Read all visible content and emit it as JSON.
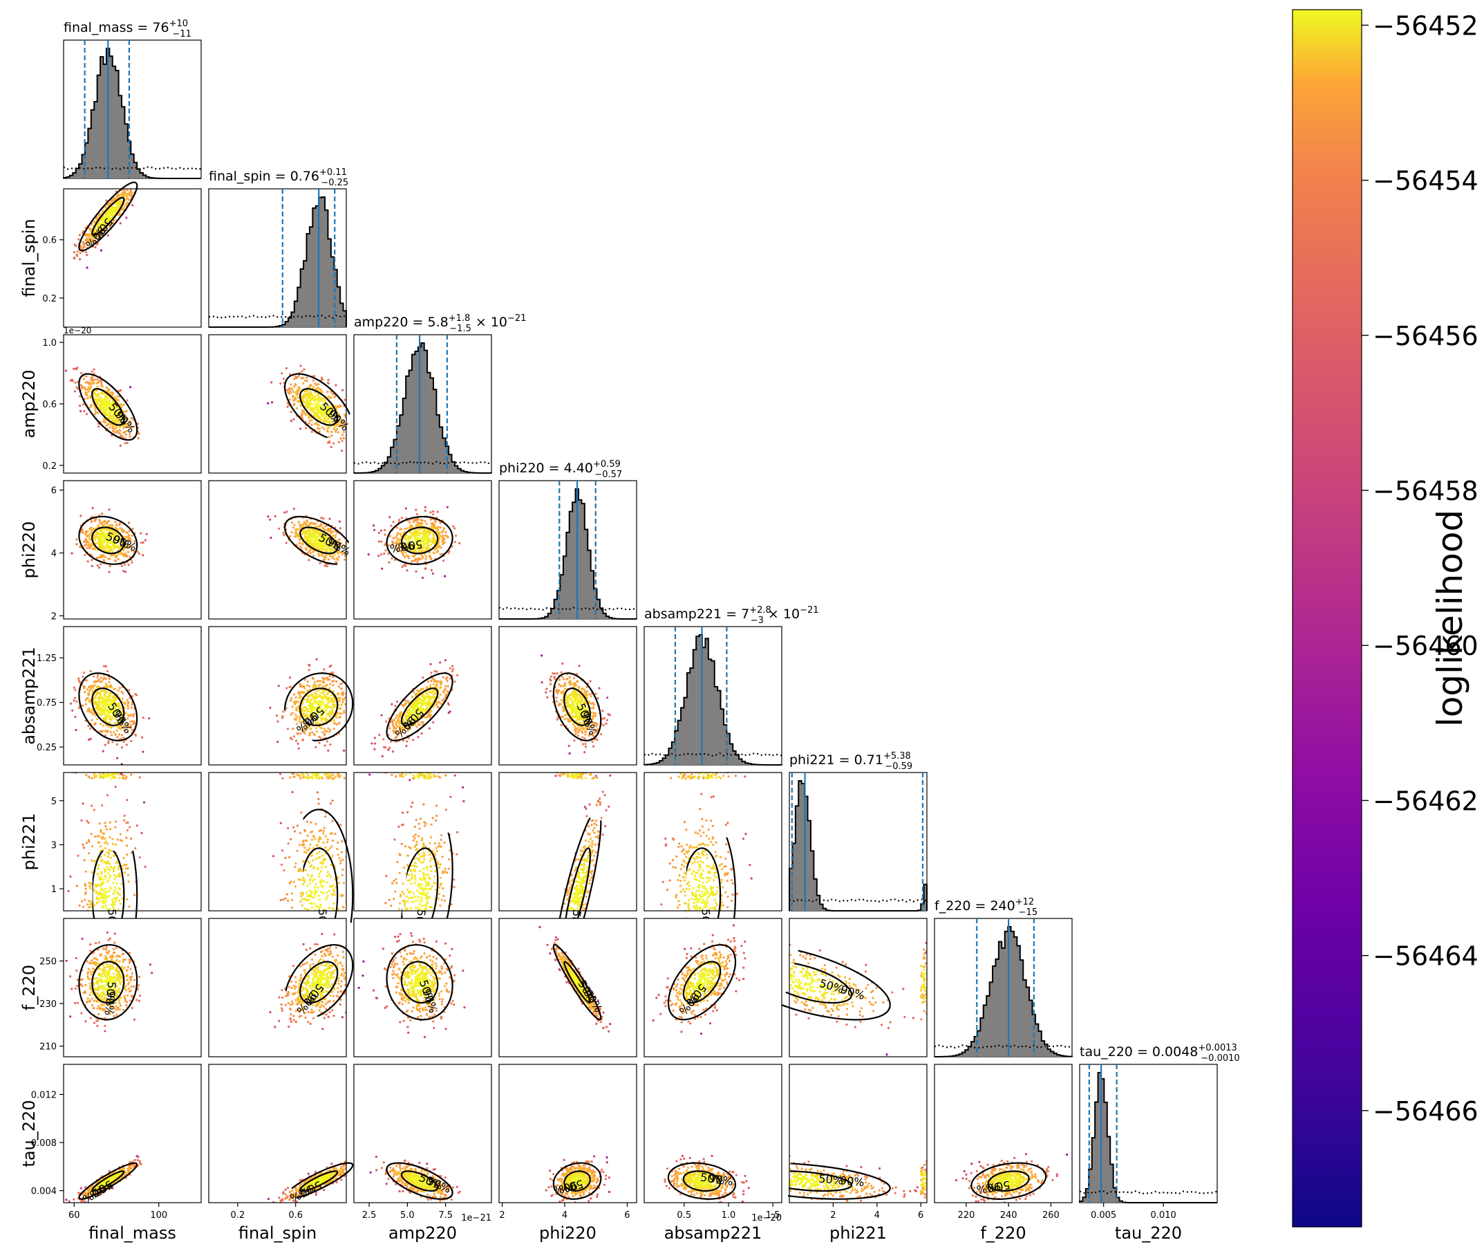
{
  "chart_data": {
    "type": "scatter",
    "kind": "corner plot (posterior samples, 1D marginal histograms and 2D scatter colored by loglikelihood)",
    "parameters": [
      {
        "name": "final_mass",
        "title_main": "final_mass = 76",
        "title_sup": "+10",
        "title_sub": "−11",
        "title_suffix": "",
        "median": 76,
        "interval": [
          65,
          86
        ],
        "range": [
          55,
          120
        ],
        "ticks": [
          60,
          100
        ],
        "tick_labels": [
          "60",
          "100"
        ],
        "offset": ""
      },
      {
        "name": "final_spin",
        "title_main": "final_spin = 0.76",
        "title_sup": "+0.11",
        "title_sub": "−0.25",
        "title_suffix": "",
        "median": 0.76,
        "interval": [
          0.51,
          0.87
        ],
        "range": [
          0.0,
          0.95
        ],
        "ticks": [
          0.2,
          0.6
        ],
        "tick_labels": [
          "0.2",
          "0.6"
        ],
        "offset": ""
      },
      {
        "name": "amp220",
        "title_main": "amp220 = 5.8",
        "title_sup": "+1.8",
        "title_sub": "−1.5",
        "title_suffix": "× 10",
        "title_exp": "−21",
        "median": 5.8e-21,
        "interval": [
          4.3e-21,
          7.6e-21
        ],
        "range": [
          1.5e-21,
          1.05e-20
        ],
        "ticks": [
          2.5e-21,
          5e-21,
          7.5e-21
        ],
        "tick_labels": [
          "2.5",
          "5.0",
          "7.5"
        ],
        "offset": "1e−21"
      },
      {
        "name": "phi220",
        "title_main": "phi220 = 4.40",
        "title_sup": "+0.59",
        "title_sub": "−0.57",
        "title_suffix": "",
        "median": 4.4,
        "interval": [
          3.83,
          4.99
        ],
        "range": [
          1.9,
          6.3
        ],
        "ticks": [
          2,
          4,
          6
        ],
        "tick_labels": [
          "2",
          "4",
          "6"
        ],
        "offset": ""
      },
      {
        "name": "absamp221",
        "title_main": "absamp221 = 7",
        "title_sup": "+2.8",
        "title_sub": "−3",
        "title_suffix": "× 10",
        "title_exp": "−21",
        "median": 7e-21,
        "interval": [
          4e-21,
          9.8e-21
        ],
        "range": [
          5e-22,
          1.6e-20
        ],
        "ticks": [
          5e-21,
          1e-20,
          1.5e-20
        ],
        "tick_labels": [
          "0.5",
          "1.0",
          "1.5"
        ],
        "offset": "1e−20"
      },
      {
        "name": "phi221",
        "title_main": "phi221 = 0.71",
        "title_sup": "+5.38",
        "title_sub": "−0.59",
        "title_suffix": "",
        "median": 0.71,
        "interval": [
          0.12,
          6.09
        ],
        "range": [
          0.0,
          6.28
        ],
        "ticks": [
          2,
          4,
          6
        ],
        "tick_labels": [
          "2",
          "4",
          "6"
        ],
        "ytick_vals": [
          1,
          3,
          5
        ],
        "ytick_labels": [
          "1",
          "3",
          "5"
        ],
        "offset": ""
      },
      {
        "name": "f_220",
        "title_main": "f_220 = 240",
        "title_sup": "+12",
        "title_sub": "−15",
        "title_suffix": "",
        "median": 240,
        "interval": [
          225,
          252
        ],
        "range": [
          205,
          270
        ],
        "ticks": [
          220,
          240,
          260
        ],
        "tick_labels": [
          "220",
          "240",
          "260"
        ],
        "ytick_vals": [
          210,
          230,
          250
        ],
        "ytick_labels": [
          "210",
          "230",
          "250"
        ],
        "offset": ""
      },
      {
        "name": "tau_220",
        "title_main": "tau_220 = 0.0048",
        "title_sup": "+0.0013",
        "title_sub": "−0.0010",
        "title_suffix": "",
        "median": 0.0048,
        "interval": [
          0.0038,
          0.0061
        ],
        "range": [
          0.003,
          0.0145
        ],
        "ticks": [
          0.005,
          0.01
        ],
        "tick_labels": [
          "0.005",
          "0.010"
        ],
        "ytick_vals": [
          0.004,
          0.008,
          0.012
        ],
        "ytick_labels": [
          "0.004",
          "0.008",
          "0.012"
        ],
        "offset": ""
      }
    ],
    "ytick_overrides": {
      "final_spin": {
        "vals": [
          0.2,
          0.6
        ],
        "labels": [
          "0.2",
          "0.6"
        ]
      },
      "amp220": {
        "vals": [
          2e-21,
          6e-21,
          1e-20
        ],
        "labels": [
          "0.2",
          "0.6",
          "1.0"
        ],
        "offset": "1e−20"
      },
      "phi220": {
        "vals": [
          2,
          4,
          6
        ],
        "labels": [
          "2",
          "4",
          "6"
        ]
      },
      "absamp221": {
        "vals": [
          2.5e-21,
          7.5e-21,
          1.25e-20
        ],
        "labels": [
          "0.25",
          "0.75",
          "1.25"
        ]
      },
      "phi221": {
        "vals": [
          1,
          3,
          5
        ],
        "labels": [
          "1",
          "3",
          "5"
        ]
      },
      "f_220": {
        "vals": [
          210,
          230,
          250
        ],
        "labels": [
          "210",
          "230",
          "250"
        ]
      },
      "tau_220": {
        "vals": [
          0.004,
          0.008,
          0.012
        ],
        "labels": [
          "0.004",
          "0.008",
          "0.012"
        ]
      }
    },
    "contour_labels": [
      "50%",
      "90%"
    ],
    "colorbar": {
      "label": "loglikelihood",
      "min": -56467.5,
      "max": -56451.8,
      "ticks": [
        -56452,
        -56454,
        -56456,
        -56458,
        -56460,
        -56462,
        -56464,
        -56466
      ],
      "tick_labels": [
        "−56452",
        "−56454",
        "−56456",
        "−56458",
        "−56460",
        "−56462",
        "−56464",
        "−56466"
      ],
      "colormap": "plasma"
    },
    "colors": {
      "hist_fill": "#808080",
      "hist_edge": "#000000",
      "quantile_lines": "#1f77b4",
      "prior_line": "#000000",
      "contour": "#000000"
    }
  }
}
